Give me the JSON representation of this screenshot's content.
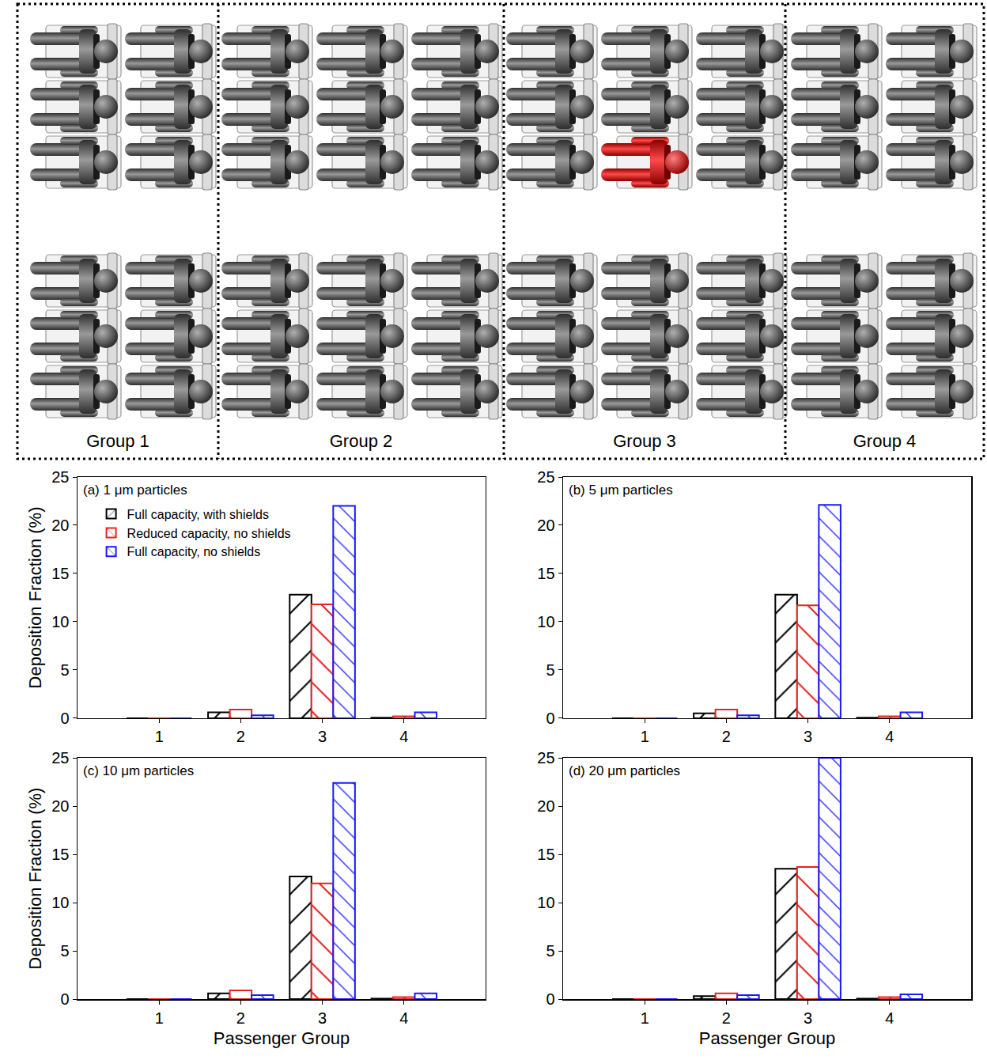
{
  "diagram": {
    "groups": [
      "Group 1",
      "Group 2",
      "Group 3",
      "Group 4"
    ]
  },
  "chart_data": [
    {
      "type": "bar",
      "title": "(a) 1 μm particles",
      "ylabel": "Deposition Fraction (%)",
      "x": [
        1,
        2,
        3,
        4
      ],
      "xlim": [
        0,
        5
      ],
      "xticks": [
        1,
        2,
        3,
        4
      ],
      "ylim": [
        0,
        25
      ],
      "yticks": [
        0,
        5,
        10,
        15,
        20,
        25
      ],
      "grid": false,
      "legend": "upper left",
      "series": [
        {
          "name": "Full capacity, with shields",
          "color": "#000000",
          "values": [
            0,
            0.6,
            12.8,
            0.05
          ]
        },
        {
          "name": "Reduced capacity, no shields",
          "color": "#e52421",
          "values": [
            0,
            0.9,
            11.8,
            0.2
          ]
        },
        {
          "name": "Full capacity, no shields",
          "color": "#1a1aff",
          "values": [
            0,
            0.3,
            22.0,
            0.6
          ]
        }
      ]
    },
    {
      "type": "bar",
      "title": "(b) 5 μm particles",
      "x": [
        1,
        2,
        3,
        4
      ],
      "xlim": [
        0,
        5
      ],
      "xticks": [
        1,
        2,
        3,
        4
      ],
      "ylim": [
        0,
        25
      ],
      "yticks": [
        0,
        5,
        10,
        15,
        20,
        25
      ],
      "grid": false,
      "series": [
        {
          "color": "#000000",
          "values": [
            0,
            0.5,
            12.8,
            0.05
          ]
        },
        {
          "color": "#e52421",
          "values": [
            0,
            0.9,
            11.7,
            0.2
          ]
        },
        {
          "color": "#1a1aff",
          "values": [
            0,
            0.3,
            22.1,
            0.6
          ]
        }
      ]
    },
    {
      "type": "bar",
      "title": "(c) 10 μm particles",
      "xlabel": "Passenger Group",
      "ylabel": "Deposition Fraction (%)",
      "x": [
        1,
        2,
        3,
        4
      ],
      "xlim": [
        0,
        5
      ],
      "xticks": [
        1,
        2,
        3,
        4
      ],
      "ylim": [
        0,
        25
      ],
      "yticks": [
        0,
        5,
        10,
        15,
        20,
        25
      ],
      "grid": false,
      "series": [
        {
          "color": "#000000",
          "values": [
            0,
            0.6,
            12.7,
            0.05
          ]
        },
        {
          "color": "#e52421",
          "values": [
            0,
            0.9,
            12.0,
            0.2
          ]
        },
        {
          "color": "#1a1aff",
          "values": [
            0,
            0.4,
            22.4,
            0.6
          ]
        }
      ]
    },
    {
      "type": "bar",
      "title": "(d) 20 μm particles",
      "xlabel": "Passenger Group",
      "x": [
        1,
        2,
        3,
        4
      ],
      "xlim": [
        0,
        5
      ],
      "xticks": [
        1,
        2,
        3,
        4
      ],
      "ylim": [
        0,
        25
      ],
      "yticks": [
        0,
        5,
        10,
        15,
        20,
        25
      ],
      "grid": false,
      "series": [
        {
          "color": "#000000",
          "values": [
            0,
            0.3,
            13.5,
            0.05
          ]
        },
        {
          "color": "#e52421",
          "values": [
            0,
            0.6,
            13.7,
            0.2
          ]
        },
        {
          "color": "#1a1aff",
          "values": [
            0,
            0.4,
            25.0,
            0.5
          ]
        }
      ]
    }
  ]
}
